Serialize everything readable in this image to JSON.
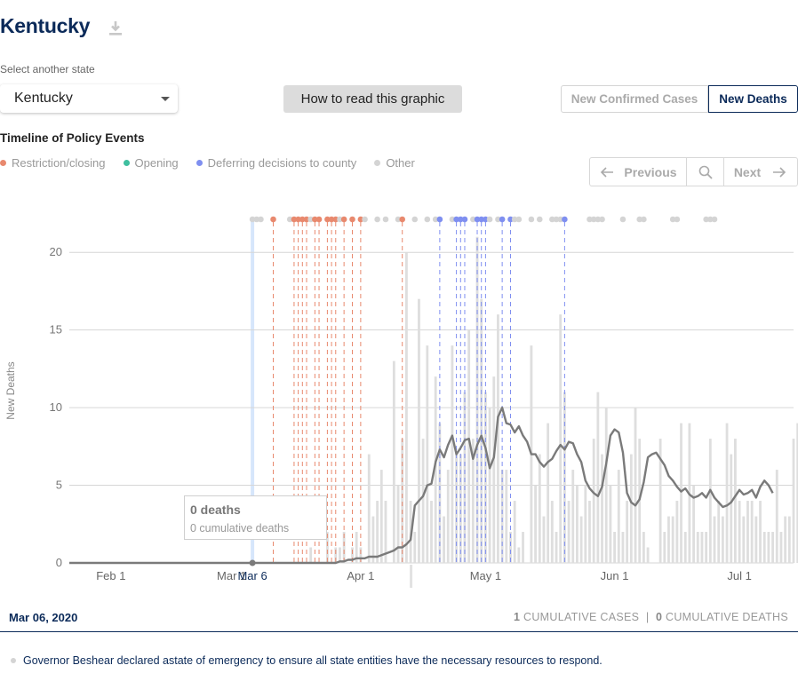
{
  "header": {
    "title": "Kentucky",
    "download_icon": "download-icon"
  },
  "state_select": {
    "label": "Select another state",
    "value": "Kentucky"
  },
  "how_to_read": "How to read this graphic",
  "metric_toggle": {
    "cases": "New Confirmed Cases",
    "deaths": "New Deaths",
    "active": "deaths"
  },
  "timeline": {
    "title": "Timeline of Policy Events",
    "legend": [
      {
        "label": "Restriction/closing",
        "color": "#e8896e"
      },
      {
        "label": "Opening",
        "color": "#3fbf9f"
      },
      {
        "label": "Deferring decisions to county",
        "color": "#7f8ff0"
      },
      {
        "label": "Other",
        "color": "#d4d4d4"
      }
    ]
  },
  "pager": {
    "previous": "Previous",
    "next": "Next"
  },
  "tooltip": {
    "deaths": "0 deaths",
    "cumulative": "0 cumulative deaths"
  },
  "footer": {
    "date": "Mar 06, 2020",
    "cases_count": "1",
    "cases_label": "CUMULATIVE CASES",
    "separator": "|",
    "deaths_count": "0",
    "deaths_label": "CUMULATIVE DEATHS"
  },
  "event": {
    "text": "Governor Beshear declared astate of emergency to ensure all state entities have the necessary resources to respond."
  },
  "chart_data": {
    "type": "bar",
    "ylabel": "New Deaths",
    "ylim": [
      0,
      22.3
    ],
    "yticks": [
      0,
      5,
      10,
      15,
      20
    ],
    "xrange": [
      "2020-01-22",
      "2020-07-14"
    ],
    "xticks": [
      {
        "date": "2020-02-01",
        "label": "Feb 1"
      },
      {
        "date": "2020-03-01",
        "label": "Mar 1"
      },
      {
        "date": "2020-04-01",
        "label": "Apr 1"
      },
      {
        "date": "2020-05-01",
        "label": "May 1"
      },
      {
        "date": "2020-06-01",
        "label": "Jun 1"
      },
      {
        "date": "2020-07-01",
        "label": "Jul 1"
      }
    ],
    "highlight_date": "2020-03-06",
    "highlight_label": "Mar 6",
    "series": [
      {
        "type": "bar",
        "start": "2020-03-06",
        "values": [
          0,
          0,
          0,
          0,
          0,
          0,
          0,
          0,
          0,
          0,
          0,
          0,
          0,
          0,
          1,
          0,
          0,
          0,
          2,
          0,
          1,
          1,
          2,
          0,
          1,
          2,
          1,
          0,
          7,
          3,
          4,
          6,
          4,
          0,
          13,
          5,
          8,
          20,
          4,
          2,
          17,
          8,
          14,
          4,
          12,
          9,
          3,
          6,
          14,
          7,
          7,
          11,
          15,
          8,
          21,
          17,
          11,
          10,
          12,
          16,
          6,
          6,
          2,
          4,
          1,
          2,
          0,
          14,
          5,
          7,
          3,
          9,
          4,
          2,
          16,
          11,
          4,
          6,
          5,
          3,
          5,
          4,
          8,
          11,
          7,
          10,
          5,
          2,
          6,
          2,
          4,
          7,
          10,
          8,
          2,
          1,
          0,
          0,
          8,
          2,
          3,
          3,
          4,
          9,
          2,
          9,
          5,
          2,
          2,
          2,
          8,
          3,
          4,
          3,
          9,
          7,
          8,
          4,
          3,
          4,
          4,
          3,
          4,
          2,
          2,
          2,
          6,
          2,
          3,
          3,
          8,
          9,
          6,
          2,
          6,
          11,
          4,
          4,
          4,
          3,
          2,
          5,
          5,
          8,
          7,
          4,
          3,
          6,
          4,
          7,
          3,
          3,
          9,
          4,
          2,
          8,
          10,
          5,
          8,
          9
        ]
      },
      {
        "type": "line",
        "start": "2020-01-22",
        "values": [
          0,
          0,
          0,
          0,
          0,
          0,
          0,
          0,
          0,
          0,
          0,
          0,
          0,
          0,
          0,
          0,
          0,
          0,
          0,
          0,
          0,
          0,
          0,
          0,
          0,
          0,
          0,
          0,
          0,
          0,
          0,
          0,
          0,
          0,
          0,
          0,
          0,
          0,
          0,
          0,
          0,
          0,
          0,
          0,
          0,
          0,
          0,
          0,
          0,
          0,
          0,
          0,
          0,
          0,
          0,
          0,
          0,
          0,
          0,
          0,
          0,
          0,
          0,
          0,
          0,
          0.1,
          0.1,
          0.2,
          0.2,
          0.3,
          0.3,
          0.3,
          0.4,
          0.4,
          0.4,
          0.5,
          0.6,
          0.7,
          0.8,
          1,
          1,
          1.2,
          1.5,
          3.7,
          4,
          4.3,
          5,
          5.1,
          6.5,
          7.3,
          6.8,
          7.6,
          8.2,
          7,
          7.4,
          7.9,
          8,
          6.7,
          7.6,
          8.2,
          7.4,
          6.1,
          6.8,
          9.4,
          10,
          9,
          8.9,
          8.4,
          8.8,
          8.2,
          7.8,
          7,
          7,
          6.5,
          6.2,
          6.5,
          6.7,
          7.2,
          7.6,
          7.3,
          7.8,
          7.7,
          7,
          6.5,
          5.3,
          4.8,
          4.5,
          4.3,
          4.9,
          6.4,
          8.2,
          8.6,
          8.4,
          7.1,
          4.5,
          3.9,
          3.7,
          4.1,
          5.2,
          6.8,
          7,
          7.1,
          6.7,
          6.3,
          5.6,
          5.3,
          4.9,
          4.6,
          4.8,
          4.4,
          4.2,
          4.3,
          4.5,
          4.2,
          4.7,
          4.2,
          3.9,
          3.6,
          3.7,
          3.9,
          4.3,
          4.7,
          4.4,
          4.5,
          4.7,
          4.2,
          4.9,
          5.3,
          5,
          4.5
        ]
      }
    ],
    "events": [
      {
        "date": "2020-03-06",
        "type": "other"
      },
      {
        "date": "2020-03-07",
        "type": "other"
      },
      {
        "date": "2020-03-08",
        "type": "other"
      },
      {
        "date": "2020-03-11",
        "type": "restriction"
      },
      {
        "date": "2020-03-15",
        "type": "other"
      },
      {
        "date": "2020-03-16",
        "type": "restriction"
      },
      {
        "date": "2020-03-17",
        "type": "restriction"
      },
      {
        "date": "2020-03-18",
        "type": "restriction"
      },
      {
        "date": "2020-03-19",
        "type": "restriction"
      },
      {
        "date": "2020-03-20",
        "type": "other"
      },
      {
        "date": "2020-03-21",
        "type": "restriction"
      },
      {
        "date": "2020-03-22",
        "type": "restriction"
      },
      {
        "date": "2020-03-24",
        "type": "restriction"
      },
      {
        "date": "2020-03-25",
        "type": "restriction"
      },
      {
        "date": "2020-03-26",
        "type": "restriction"
      },
      {
        "date": "2020-03-27",
        "type": "other"
      },
      {
        "date": "2020-03-28",
        "type": "restriction"
      },
      {
        "date": "2020-03-30",
        "type": "restriction"
      },
      {
        "date": "2020-04-01",
        "type": "restriction"
      },
      {
        "date": "2020-04-02",
        "type": "other"
      },
      {
        "date": "2020-04-05",
        "type": "other"
      },
      {
        "date": "2020-04-07",
        "type": "other"
      },
      {
        "date": "2020-04-10",
        "type": "other"
      },
      {
        "date": "2020-04-11",
        "type": "restriction"
      },
      {
        "date": "2020-04-14",
        "type": "other"
      },
      {
        "date": "2020-04-17",
        "type": "other"
      },
      {
        "date": "2020-04-19",
        "type": "other"
      },
      {
        "date": "2020-04-20",
        "type": "deferring"
      },
      {
        "date": "2020-04-23",
        "type": "other"
      },
      {
        "date": "2020-04-24",
        "type": "deferring"
      },
      {
        "date": "2020-04-25",
        "type": "deferring"
      },
      {
        "date": "2020-04-26",
        "type": "deferring"
      },
      {
        "date": "2020-04-28",
        "type": "other"
      },
      {
        "date": "2020-04-29",
        "type": "deferring"
      },
      {
        "date": "2020-04-30",
        "type": "deferring"
      },
      {
        "date": "2020-05-01",
        "type": "deferring"
      },
      {
        "date": "2020-05-02",
        "type": "other"
      },
      {
        "date": "2020-05-04",
        "type": "other"
      },
      {
        "date": "2020-05-05",
        "type": "deferring"
      },
      {
        "date": "2020-05-07",
        "type": "deferring"
      },
      {
        "date": "2020-05-08",
        "type": "other"
      },
      {
        "date": "2020-05-09",
        "type": "other"
      },
      {
        "date": "2020-05-12",
        "type": "other"
      },
      {
        "date": "2020-05-14",
        "type": "other"
      },
      {
        "date": "2020-05-17",
        "type": "other"
      },
      {
        "date": "2020-05-18",
        "type": "other"
      },
      {
        "date": "2020-05-19",
        "type": "other"
      },
      {
        "date": "2020-05-20",
        "type": "deferring"
      },
      {
        "date": "2020-05-26",
        "type": "other"
      },
      {
        "date": "2020-05-27",
        "type": "other"
      },
      {
        "date": "2020-05-28",
        "type": "other"
      },
      {
        "date": "2020-05-29",
        "type": "other"
      },
      {
        "date": "2020-06-03",
        "type": "other"
      },
      {
        "date": "2020-06-07",
        "type": "other"
      },
      {
        "date": "2020-06-08",
        "type": "other"
      },
      {
        "date": "2020-06-15",
        "type": "other"
      },
      {
        "date": "2020-06-16",
        "type": "other"
      },
      {
        "date": "2020-06-23",
        "type": "other"
      },
      {
        "date": "2020-06-24",
        "type": "other"
      },
      {
        "date": "2020-06-25",
        "type": "other"
      }
    ]
  }
}
